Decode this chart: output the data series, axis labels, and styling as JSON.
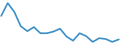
{
  "values": [
    19.5,
    22.6,
    20.5,
    17.0,
    15.8,
    16.8,
    15.3,
    15.3,
    15.7,
    16.4,
    14.5,
    13.5,
    15.3,
    14.6,
    13.2,
    14.1,
    13.9,
    13.2,
    13.8
  ],
  "line_color": "#3a8fc7",
  "linewidth": 1.2,
  "bg_color": "#ffffff",
  "figsize": [
    1.2,
    0.45
  ],
  "dpi": 100
}
